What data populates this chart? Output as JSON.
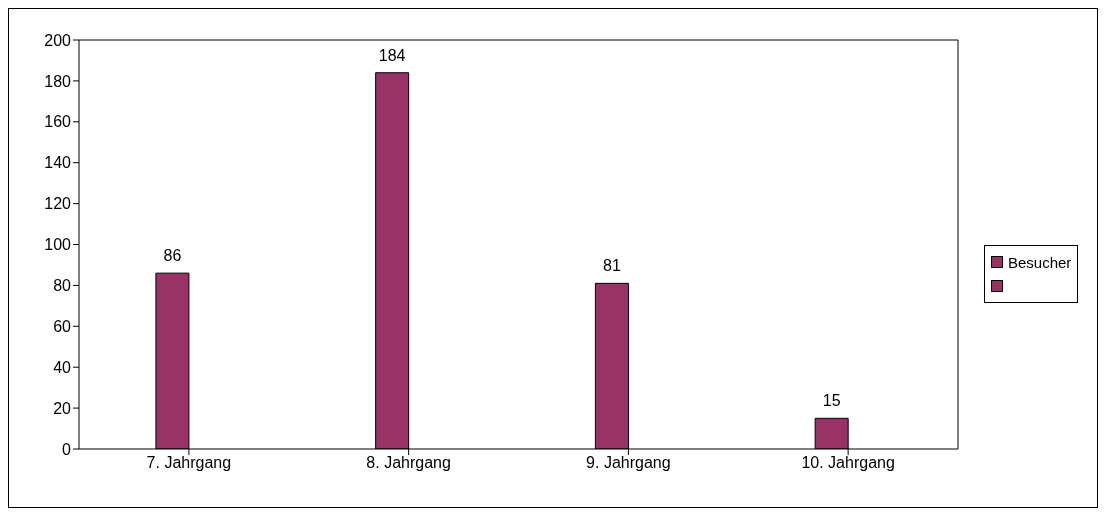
{
  "chart_data": {
    "type": "bar",
    "categories": [
      "7. Jahrgang",
      "8. Jahrgang",
      "9. Jahrgang",
      "10. Jahrgang"
    ],
    "series": [
      {
        "name": "Besucher",
        "color": "#993366",
        "values": [
          86,
          184,
          81,
          15
        ]
      },
      {
        "color": "#993366",
        "values": [
          null,
          null,
          null,
          null
        ]
      }
    ],
    "ylim": [
      0,
      200
    ],
    "yticks": [
      0,
      20,
      40,
      60,
      80,
      100,
      120,
      140,
      160,
      180,
      200
    ],
    "grid": false,
    "legend": "right",
    "data_labels": true
  }
}
